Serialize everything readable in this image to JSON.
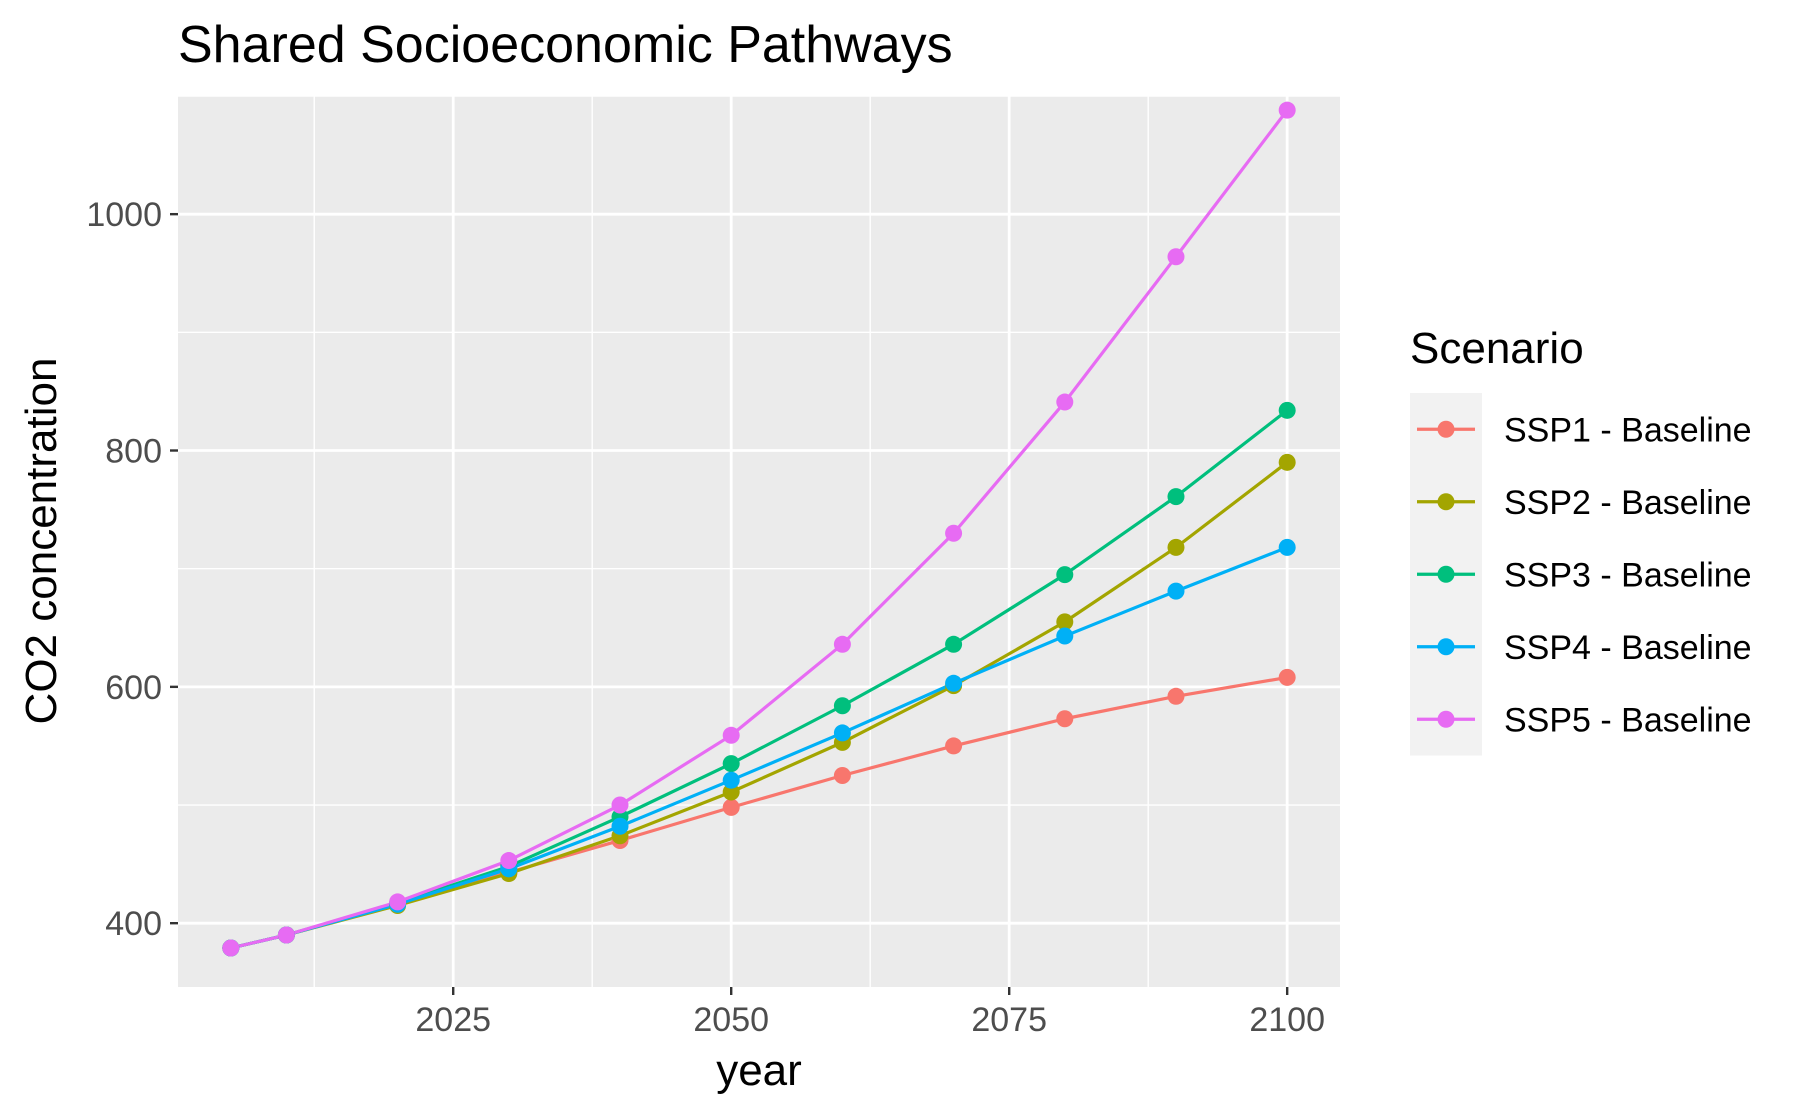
{
  "chart_data": {
    "type": "line",
    "title": "Shared Socioeconomic Pathways",
    "xlabel": "year",
    "ylabel": "CO2 concentration",
    "x": [
      2005,
      2010,
      2020,
      2030,
      2040,
      2050,
      2060,
      2070,
      2080,
      2090,
      2100
    ],
    "xlim": [
      2000.25,
      2104.75
    ],
    "ylim": [
      346,
      1100
    ],
    "x_ticks": [
      2025,
      2050,
      2075,
      2100
    ],
    "x_ticklabels": [
      "2025",
      "2050",
      "2075",
      "2100"
    ],
    "y_ticks": [
      400,
      600,
      800,
      1000
    ],
    "y_ticklabels": [
      "400",
      "600",
      "800",
      "1000"
    ],
    "grid": true,
    "legend": {
      "title": "Scenario",
      "position": "right"
    },
    "series": [
      {
        "name": "SSP1 - Baseline",
        "color": "#F8766D",
        "values": [
          379,
          390,
          416,
          443,
          470,
          498,
          525,
          550,
          573,
          592,
          608
        ]
      },
      {
        "name": "SSP2 - Baseline",
        "color": "#A3A500",
        "values": [
          379,
          390,
          415,
          442,
          474,
          511,
          553,
          601,
          655,
          718,
          790
        ]
      },
      {
        "name": "SSP3 - Baseline",
        "color": "#00BF7D",
        "values": [
          379,
          390,
          417,
          448,
          490,
          535,
          584,
          636,
          695,
          761,
          834
        ]
      },
      {
        "name": "SSP4 - Baseline",
        "color": "#00B0F6",
        "values": [
          379,
          390,
          416,
          446,
          482,
          521,
          561,
          603,
          643,
          681,
          718
        ]
      },
      {
        "name": "SSP5 - Baseline",
        "color": "#E76BF3",
        "values": [
          379,
          390,
          418,
          453,
          500,
          559,
          636,
          730,
          841,
          964,
          1088
        ]
      }
    ]
  }
}
